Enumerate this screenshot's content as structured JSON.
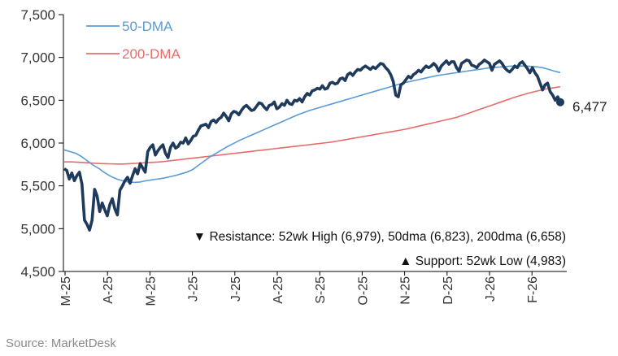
{
  "chart_data": {
    "type": "line",
    "title": "",
    "xlabel": "",
    "ylabel": "",
    "ylim": [
      4500,
      7500
    ],
    "yticks": [
      4500,
      5000,
      5500,
      6000,
      6500,
      7000,
      7500
    ],
    "ytick_labels": [
      "4,500",
      "5,000",
      "5,500",
      "6,000",
      "6,500",
      "7,000",
      "7,500"
    ],
    "xtick_labels": [
      "M-25",
      "A-25",
      "M-25",
      "J-25",
      "J-25",
      "A-25",
      "S-25",
      "O-25",
      "N-25",
      "D-25",
      "J-26",
      "F-26"
    ],
    "grid": false,
    "legend": "top-left",
    "x_start": "2025-03-03",
    "x_end": "2026-02-27",
    "colors": {
      "index": "#1f3b5c",
      "dma50": "#5b9bd5",
      "dma200": "#e86b6b"
    },
    "last_value": 6477,
    "last_value_label": "6,477",
    "annotations": [
      "▼ Resistance: 52wk High (6,979), 50dma (6,823), 200dma (6,658)",
      "▲ Support: 52wk Low (4,983)"
    ],
    "series": [
      {
        "role": "index",
        "values": [
          5700,
          5680,
          5580,
          5650,
          5560,
          5620,
          5660,
          5520,
          5100,
          5050,
          4983,
          5100,
          5460,
          5380,
          5200,
          5300,
          5220,
          5150,
          5280,
          5350,
          5230,
          5160,
          5450,
          5500,
          5560,
          5600,
          5530,
          5620,
          5700,
          5640,
          5760,
          5710,
          5660,
          5900,
          5950,
          5980,
          5860,
          5910,
          5950,
          5980,
          5880,
          5830,
          5950,
          6000,
          5940,
          5960,
          6010,
          6000,
          6060,
          5990,
          6030,
          6080,
          6090,
          6150,
          6200,
          6210,
          6220,
          6180,
          6250,
          6270,
          6240,
          6280,
          6300,
          6350,
          6310,
          6260,
          6340,
          6370,
          6360,
          6330,
          6380,
          6420,
          6440,
          6410,
          6380,
          6390,
          6430,
          6470,
          6460,
          6420,
          6390,
          6440,
          6450,
          6480,
          6400,
          6420,
          6460,
          6440,
          6500,
          6460,
          6450,
          6500,
          6490,
          6520,
          6480,
          6540,
          6580,
          6560,
          6610,
          6620,
          6640,
          6630,
          6670,
          6630,
          6640,
          6700,
          6710,
          6690,
          6700,
          6750,
          6760,
          6730,
          6800,
          6820,
          6790,
          6830,
          6860,
          6850,
          6880,
          6900,
          6880,
          6860,
          6890,
          6870,
          6900,
          6930,
          6920,
          6880,
          6850,
          6800,
          6720,
          6560,
          6540,
          6680,
          6700,
          6740,
          6780,
          6760,
          6800,
          6820,
          6850,
          6830,
          6870,
          6900,
          6880,
          6900,
          6930,
          6900,
          6840,
          6900,
          6930,
          6960,
          6920,
          6950,
          6950,
          6880,
          6840,
          6930,
          6950,
          6970,
          6960,
          6910,
          6900,
          6880,
          6920,
          6940,
          6970,
          6950,
          6930,
          6850,
          6920,
          6940,
          6960,
          6930,
          6880,
          6850,
          6830,
          6860,
          6900,
          6880,
          6930,
          6950,
          6910,
          6870,
          6820,
          6880,
          6820,
          6780,
          6700,
          6620,
          6680,
          6700,
          6600,
          6560,
          6500,
          6540,
          6477
        ]
      },
      {
        "role": "dma50",
        "name": "50-DMA",
        "values": [
          5920,
          5900,
          5880,
          5840,
          5790,
          5740,
          5700,
          5650,
          5610,
          5580,
          5560,
          5545,
          5540,
          5545,
          5560,
          5570,
          5580,
          5590,
          5605,
          5620,
          5640,
          5660,
          5690,
          5740,
          5790,
          5840,
          5880,
          5920,
          5960,
          5995,
          6030,
          6060,
          6090,
          6120,
          6150,
          6180,
          6210,
          6240,
          6270,
          6300,
          6330,
          6355,
          6380,
          6400,
          6420,
          6440,
          6460,
          6480,
          6500,
          6520,
          6540,
          6560,
          6580,
          6600,
          6620,
          6640,
          6660,
          6680,
          6700,
          6715,
          6730,
          6745,
          6760,
          6775,
          6790,
          6800,
          6810,
          6820,
          6830,
          6840,
          6850,
          6860,
          6870,
          6880,
          6885,
          6890,
          6895,
          6900,
          6900,
          6900,
          6895,
          6890,
          6880,
          6860,
          6840,
          6823
        ]
      },
      {
        "role": "dma200",
        "name": "200-DMA",
        "values": [
          5780,
          5780,
          5775,
          5770,
          5765,
          5760,
          5758,
          5755,
          5755,
          5760,
          5765,
          5770,
          5775,
          5780,
          5790,
          5800,
          5810,
          5820,
          5830,
          5840,
          5850,
          5860,
          5870,
          5880,
          5890,
          5900,
          5910,
          5920,
          5930,
          5940,
          5950,
          5960,
          5970,
          5980,
          5990,
          6000,
          6010,
          6025,
          6040,
          6055,
          6070,
          6085,
          6100,
          6115,
          6130,
          6145,
          6160,
          6180,
          6200,
          6220,
          6240,
          6260,
          6280,
          6300,
          6330,
          6360,
          6390,
          6420,
          6450,
          6480,
          6510,
          6540,
          6565,
          6590,
          6610,
          6630,
          6645,
          6658
        ]
      }
    ]
  },
  "source": "Source: MarketDesk"
}
